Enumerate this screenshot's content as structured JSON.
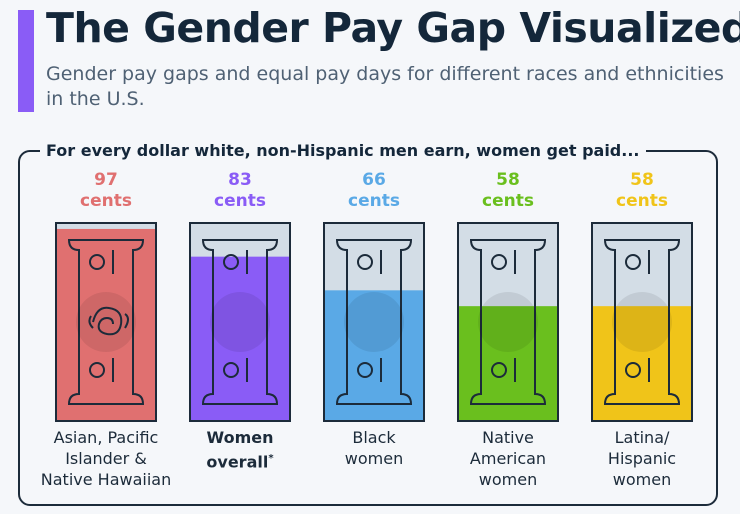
{
  "header": {
    "title": "The Gender Pay Gap Visualized",
    "subtitle": "Gender pay gaps and equal pay days for different races and ethnicities in the U.S."
  },
  "chart_data": {
    "type": "bar",
    "title": "The Gender Pay Gap Visualized",
    "subtitle": "Gender pay gaps and equal pay days for different races and ethnicities in the U.S.",
    "frame_label": "For every dollar white, non-Hispanic men earn, women get paid...",
    "unit": "cents",
    "ylim": [
      0,
      100
    ],
    "categories": [
      "Asian, Pacific Islander & Native Hawaiian",
      "Women overall*",
      "Black women",
      "Native American women",
      "Latina/ Hispanic women"
    ],
    "values": [
      97,
      83,
      66,
      58,
      58
    ],
    "colors": [
      "#e07070",
      "#8a5cf6",
      "#5aa9e6",
      "#6abf1e",
      "#f0c419"
    ],
    "bold": [
      false,
      true,
      false,
      false,
      false
    ],
    "empty_color": "#d3dde6"
  },
  "columns": [
    {
      "value": "97",
      "unit": "cents",
      "label_lines": [
        "Asian, Pacific",
        "Islander &",
        "Native Hawaiian"
      ],
      "label_suffix": ""
    },
    {
      "value": "83",
      "unit": "cents",
      "label_lines": [
        "Women",
        "overall"
      ],
      "label_suffix": "*"
    },
    {
      "value": "66",
      "unit": "cents",
      "label_lines": [
        "Black",
        "women"
      ],
      "label_suffix": ""
    },
    {
      "value": "58",
      "unit": "cents",
      "label_lines": [
        "Native",
        "American",
        "women"
      ],
      "label_suffix": ""
    },
    {
      "value": "58",
      "unit": "cents",
      "label_lines": [
        "Latina/",
        "Hispanic",
        "women"
      ],
      "label_suffix": ""
    }
  ]
}
